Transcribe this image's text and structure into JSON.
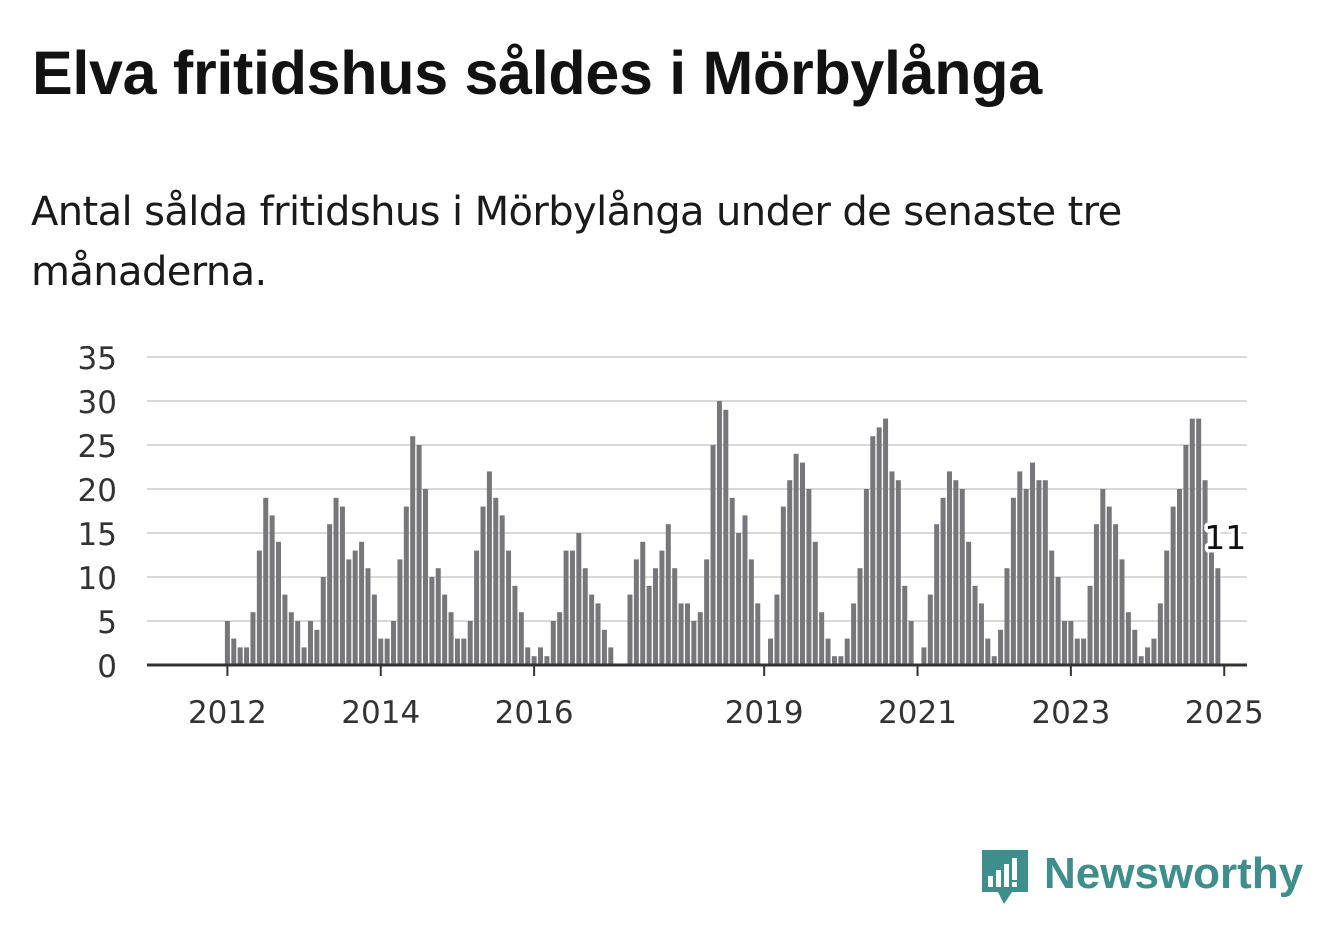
{
  "header": {
    "title": "Elva fritidshus såldes i Mörbylånga",
    "subtitle": "Antal sålda fritidshus i Mörbylånga under de senaste tre månaderna."
  },
  "branding": {
    "name": "Newsworthy",
    "icon": "newsworthy-logo-icon",
    "color": "#3e8e8c"
  },
  "colors": {
    "bar": "#77767b",
    "highlight": "#1a9c95",
    "grid": "#d9d9d9",
    "axis": "#333333",
    "text": "#333333"
  },
  "chart_data": {
    "type": "bar",
    "title": "Elva fritidshus såldes i Mörbylånga",
    "xlabel": "",
    "ylabel": "",
    "ylim": [
      0,
      35
    ],
    "yticks": [
      0,
      5,
      10,
      15,
      20,
      25,
      30,
      35
    ],
    "grid": true,
    "x_tick_labels": [
      {
        "label": "2012",
        "month": "2012-01"
      },
      {
        "label": "2014",
        "month": "2014-01"
      },
      {
        "label": "2016",
        "month": "2016-01"
      },
      {
        "label": "2019",
        "month": "2019-01"
      },
      {
        "label": "2021",
        "month": "2021-01"
      },
      {
        "label": "2023",
        "month": "2023-01"
      },
      {
        "label": "2025",
        "month": "2025-01"
      }
    ],
    "start_month": "2011-03",
    "end_month": "2025-01",
    "values": [
      0,
      0,
      0,
      0,
      0,
      0,
      0,
      0,
      0,
      0,
      5,
      3,
      2,
      2,
      6,
      13,
      19,
      17,
      14,
      8,
      6,
      5,
      2,
      5,
      4,
      10,
      16,
      19,
      18,
      12,
      13,
      14,
      11,
      8,
      3,
      3,
      5,
      12,
      18,
      26,
      25,
      20,
      10,
      11,
      8,
      6,
      3,
      3,
      5,
      13,
      18,
      22,
      19,
      17,
      13,
      9,
      6,
      2,
      1,
      2,
      1,
      5,
      6,
      13,
      13,
      15,
      11,
      8,
      7,
      4,
      2,
      0,
      0,
      8,
      12,
      14,
      9,
      11,
      13,
      16,
      11,
      7,
      7,
      5,
      6,
      12,
      25,
      30,
      29,
      19,
      15,
      17,
      12,
      7,
      0,
      3,
      8,
      18,
      21,
      24,
      23,
      20,
      14,
      6,
      3,
      1,
      1,
      3,
      7,
      11,
      20,
      26,
      27,
      28,
      22,
      21,
      9,
      5,
      0,
      2,
      8,
      16,
      19,
      22,
      21,
      20,
      14,
      9,
      7,
      3,
      1,
      4,
      11,
      19,
      22,
      20,
      23,
      21,
      21,
      13,
      10,
      5,
      5,
      3,
      3,
      9,
      16,
      20,
      18,
      16,
      12,
      6,
      4,
      1,
      2,
      3,
      7,
      13,
      18,
      20,
      25,
      28,
      28,
      21,
      13,
      11
    ],
    "highlight": {
      "index": 166,
      "value": 11,
      "label": "11"
    }
  }
}
